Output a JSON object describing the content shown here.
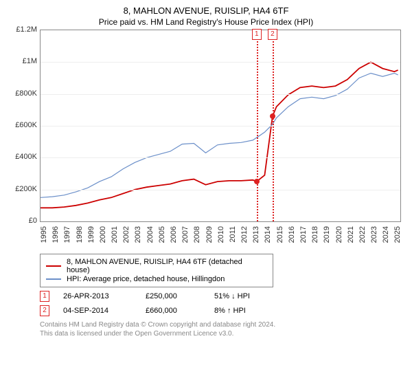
{
  "title": "8, MAHLON AVENUE, RUISLIP, HA4 6TF",
  "subtitle": "Price paid vs. HM Land Registry's House Price Index (HPI)",
  "chart": {
    "type": "line",
    "background_color": "#ffffff",
    "grid_color": "#eeeeee",
    "border_color": "#888888",
    "ylim": [
      0,
      1200000
    ],
    "yticks": [
      {
        "v": 0,
        "label": "£0"
      },
      {
        "v": 200000,
        "label": "£200K"
      },
      {
        "v": 400000,
        "label": "£400K"
      },
      {
        "v": 600000,
        "label": "£600K"
      },
      {
        "v": 800000,
        "label": "£800K"
      },
      {
        "v": 1000000,
        "label": "£1M"
      },
      {
        "v": 1200000,
        "label": "£1.2M"
      }
    ],
    "xlim": [
      1995,
      2025.5
    ],
    "xticks": [
      1995,
      1996,
      1997,
      1998,
      1999,
      2000,
      2001,
      2002,
      2003,
      2004,
      2005,
      2006,
      2007,
      2008,
      2009,
      2010,
      2011,
      2012,
      2013,
      2014,
      2015,
      2016,
      2017,
      2018,
      2019,
      2020,
      2021,
      2022,
      2023,
      2024,
      2025
    ],
    "series": [
      {
        "name": "property",
        "label": "8, MAHLON AVENUE, RUISLIP, HA4 6TF (detached house)",
        "color": "#cc0000",
        "width": 1.8,
        "data": [
          [
            1995.0,
            85000
          ],
          [
            1996.0,
            85000
          ],
          [
            1997.0,
            90000
          ],
          [
            1998.0,
            100000
          ],
          [
            1999.0,
            115000
          ],
          [
            2000.0,
            135000
          ],
          [
            2001.0,
            150000
          ],
          [
            2002.0,
            175000
          ],
          [
            2003.0,
            200000
          ],
          [
            2004.0,
            215000
          ],
          [
            2005.0,
            225000
          ],
          [
            2006.0,
            235000
          ],
          [
            2007.0,
            255000
          ],
          [
            2008.0,
            265000
          ],
          [
            2009.0,
            230000
          ],
          [
            2010.0,
            250000
          ],
          [
            2011.0,
            255000
          ],
          [
            2012.0,
            255000
          ],
          [
            2013.0,
            260000
          ],
          [
            2013.32,
            250000
          ],
          [
            2014.0,
            290000
          ],
          [
            2014.67,
            660000
          ],
          [
            2015.0,
            720000
          ],
          [
            2016.0,
            795000
          ],
          [
            2017.0,
            840000
          ],
          [
            2018.0,
            850000
          ],
          [
            2019.0,
            840000
          ],
          [
            2020.0,
            850000
          ],
          [
            2021.0,
            890000
          ],
          [
            2022.0,
            960000
          ],
          [
            2023.0,
            1000000
          ],
          [
            2024.0,
            960000
          ],
          [
            2025.0,
            940000
          ],
          [
            2025.3,
            950000
          ]
        ]
      },
      {
        "name": "hpi",
        "label": "HPI: Average price, detached house, Hillingdon",
        "color": "#6b8fc9",
        "width": 1.2,
        "data": [
          [
            1995.0,
            150000
          ],
          [
            1996.0,
            155000
          ],
          [
            1997.0,
            165000
          ],
          [
            1998.0,
            185000
          ],
          [
            1999.0,
            210000
          ],
          [
            2000.0,
            250000
          ],
          [
            2001.0,
            280000
          ],
          [
            2002.0,
            330000
          ],
          [
            2003.0,
            370000
          ],
          [
            2004.0,
            400000
          ],
          [
            2005.0,
            420000
          ],
          [
            2006.0,
            440000
          ],
          [
            2007.0,
            485000
          ],
          [
            2008.0,
            490000
          ],
          [
            2008.5,
            460000
          ],
          [
            2009.0,
            430000
          ],
          [
            2010.0,
            480000
          ],
          [
            2011.0,
            490000
          ],
          [
            2012.0,
            495000
          ],
          [
            2013.0,
            510000
          ],
          [
            2014.0,
            560000
          ],
          [
            2014.67,
            610000
          ],
          [
            2015.0,
            650000
          ],
          [
            2016.0,
            720000
          ],
          [
            2017.0,
            770000
          ],
          [
            2018.0,
            780000
          ],
          [
            2019.0,
            770000
          ],
          [
            2020.0,
            790000
          ],
          [
            2021.0,
            830000
          ],
          [
            2022.0,
            900000
          ],
          [
            2023.0,
            930000
          ],
          [
            2024.0,
            910000
          ],
          [
            2025.0,
            930000
          ],
          [
            2025.3,
            920000
          ]
        ]
      }
    ],
    "markers": [
      {
        "n": "1",
        "x": 2013.32,
        "y": 250000
      },
      {
        "n": "2",
        "x": 2014.67,
        "y": 660000
      }
    ]
  },
  "sales": [
    {
      "n": "1",
      "date": "26-APR-2013",
      "price": "£250,000",
      "diff": "51% ↓ HPI"
    },
    {
      "n": "2",
      "date": "04-SEP-2014",
      "price": "£660,000",
      "diff": "8% ↑ HPI"
    }
  ],
  "footer": {
    "line1": "Contains HM Land Registry data © Crown copyright and database right 2024.",
    "line2": "This data is licensed under the Open Government Licence v3.0."
  }
}
